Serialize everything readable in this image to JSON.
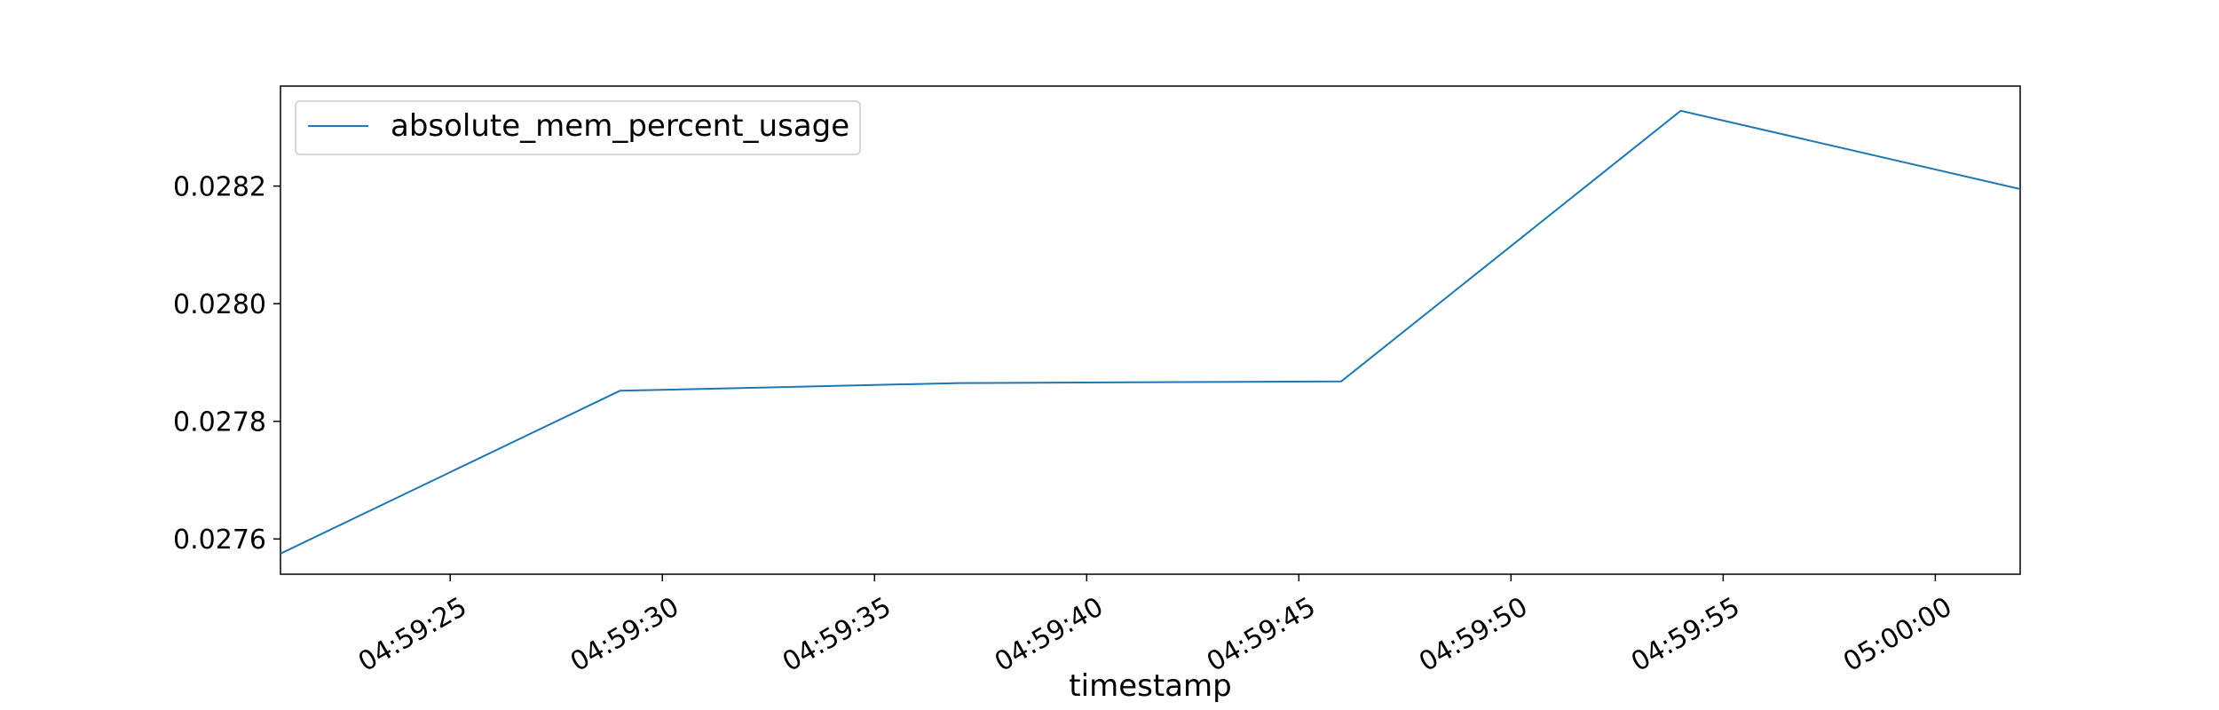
{
  "chart_data": {
    "type": "line",
    "title": "",
    "xlabel": "timestamp",
    "ylabel": "",
    "x": [
      "04:59:21",
      "04:59:29",
      "04:59:37",
      "04:59:46",
      "04:59:54",
      "05:00:02"
    ],
    "series": [
      {
        "name": "absolute_mem_percent_usage",
        "color": "#1f77b4",
        "values": [
          0.027575,
          0.027852,
          0.027865,
          0.027868,
          0.028328,
          0.028195
        ]
      }
    ],
    "xlim": [
      "04:59:21",
      "05:00:02"
    ],
    "ylim": [
      0.02754,
      0.02837
    ],
    "x_ticks": [
      "04:59:25",
      "04:59:30",
      "04:59:35",
      "04:59:40",
      "04:59:45",
      "04:59:50",
      "04:59:55",
      "05:00:00"
    ],
    "y_ticks": [
      "0.0276",
      "0.0278",
      "0.0280",
      "0.0282"
    ],
    "grid": false,
    "legend_position": "top-left"
  }
}
